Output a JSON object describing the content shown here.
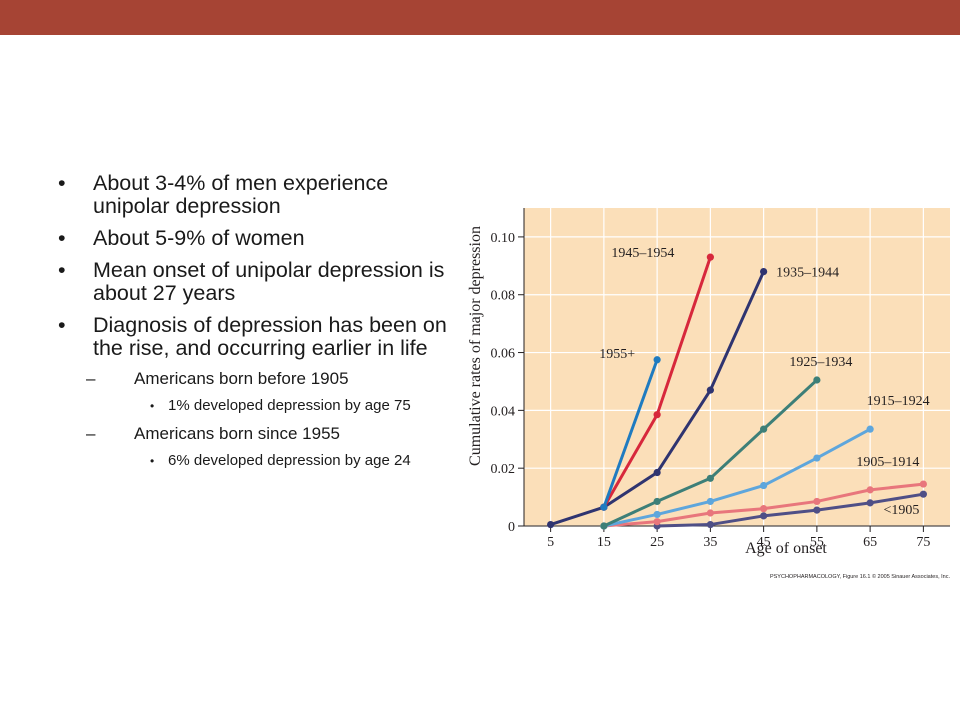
{
  "theme": {
    "bar_color": "#a64434",
    "plot_bg": "#fbdfb9",
    "grid_color": "#ffffff",
    "text_color": "#231f20"
  },
  "slide": {
    "bullets": [
      {
        "level": 1,
        "text": "About 3-4% of men experience unipolar depression"
      },
      {
        "level": 1,
        "text": "About 5-9% of women"
      },
      {
        "level": 1,
        "text": "Mean onset of unipolar depression is about 27 years"
      },
      {
        "level": 1,
        "text": "Diagnosis of depression has been on the rise, and occurring earlier in life"
      },
      {
        "level": 2,
        "text": "Americans born before 1905"
      },
      {
        "level": 3,
        "text": "1% developed depression by age 75"
      },
      {
        "level": 2,
        "text": "Americans born since 1955"
      },
      {
        "level": 3,
        "text": "6% developed depression by age 24"
      }
    ],
    "markers": {
      "level1": "•",
      "level2": "–",
      "level3": "•"
    }
  },
  "chart_data": {
    "type": "line",
    "title": "",
    "xlabel": "Age of onset",
    "ylabel": "Cumulative rates of major depression",
    "x_ticks": [
      5,
      15,
      25,
      35,
      45,
      55,
      65,
      75
    ],
    "y_ticks": [
      0,
      0.02,
      0.04,
      0.06,
      0.08,
      0.1
    ],
    "y_tick_labels": [
      "0",
      "0.02",
      "0.04",
      "0.06",
      "0.08",
      "0.10"
    ],
    "xlim": [
      0,
      80
    ],
    "ylim": [
      0,
      0.11
    ],
    "grid": true,
    "legend": "inline labels",
    "credit": "PSYCHOPHARMACOLOGY, Figure 16.1 © 2005 Sinauer Associates, Inc.",
    "series": [
      {
        "name": "1955+",
        "color": "#1f7bc0",
        "points": [
          [
            15,
            0.0065
          ],
          [
            25,
            0.0575
          ]
        ]
      },
      {
        "name": "1945–1954",
        "color": "#d7283c",
        "points": [
          [
            15,
            0.0065
          ],
          [
            25,
            0.0385
          ],
          [
            35,
            0.093
          ]
        ]
      },
      {
        "name": "1935–1944",
        "color": "#2f3470",
        "points": [
          [
            5,
            0.0005
          ],
          [
            15,
            0.0065
          ],
          [
            25,
            0.0185
          ],
          [
            35,
            0.047
          ],
          [
            45,
            0.088
          ]
        ]
      },
      {
        "name": "1925–1934",
        "color": "#3d7f78",
        "points": [
          [
            15,
            0.0
          ],
          [
            25,
            0.0085
          ],
          [
            35,
            0.0165
          ],
          [
            45,
            0.0335
          ],
          [
            55,
            0.0505
          ]
        ]
      },
      {
        "name": "1915–1924",
        "color": "#5ea6dc",
        "points": [
          [
            15,
            0.0
          ],
          [
            25,
            0.004
          ],
          [
            35,
            0.0085
          ],
          [
            45,
            0.014
          ],
          [
            55,
            0.0235
          ],
          [
            65,
            0.0335
          ]
        ]
      },
      {
        "name": "1905–1914",
        "color": "#e8767c",
        "points": [
          [
            15,
            0.0
          ],
          [
            25,
            0.0015
          ],
          [
            35,
            0.0045
          ],
          [
            45,
            0.006
          ],
          [
            55,
            0.0085
          ],
          [
            65,
            0.0125
          ],
          [
            75,
            0.0145
          ]
        ]
      },
      {
        "name": "<1905",
        "color": "#4f4f86",
        "points": [
          [
            25,
            0.0
          ],
          [
            35,
            0.0005
          ],
          [
            45,
            0.0035
          ],
          [
            55,
            0.0055
          ],
          [
            65,
            0.008
          ],
          [
            75,
            0.011
          ]
        ]
      }
    ]
  }
}
